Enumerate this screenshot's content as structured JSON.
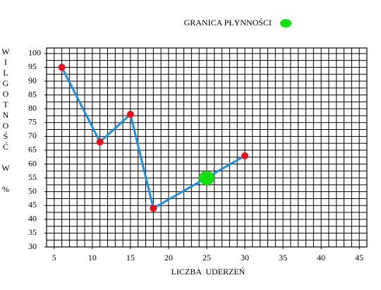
{
  "chart_data": {
    "type": "line",
    "xlabel": "LICZBA  UDERZEŃ",
    "ylabel": "WILGOTNOŚĆ W %",
    "series": [
      {
        "color": "#1e8fe0",
        "marker_color": "#e8101a",
        "x": [
          6,
          11,
          15,
          18,
          30
        ],
        "values": [
          95,
          68,
          78,
          44,
          63
        ]
      },
      {
        "name": "GRANICA PŁYNNOŚCI",
        "color": "#11e011",
        "x": [
          25
        ],
        "values": [
          55
        ]
      }
    ],
    "xlim": [
      4,
      46
    ],
    "xticks": [
      5,
      10,
      15,
      20,
      25,
      30,
      35,
      40,
      45
    ],
    "ylim": [
      30,
      102
    ],
    "yticks": [
      30,
      35,
      40,
      45,
      50,
      55,
      60,
      65,
      70,
      75,
      80,
      85,
      90,
      95,
      100
    ],
    "grid": {
      "x": 1,
      "y": 2.5
    },
    "legend": "top"
  }
}
